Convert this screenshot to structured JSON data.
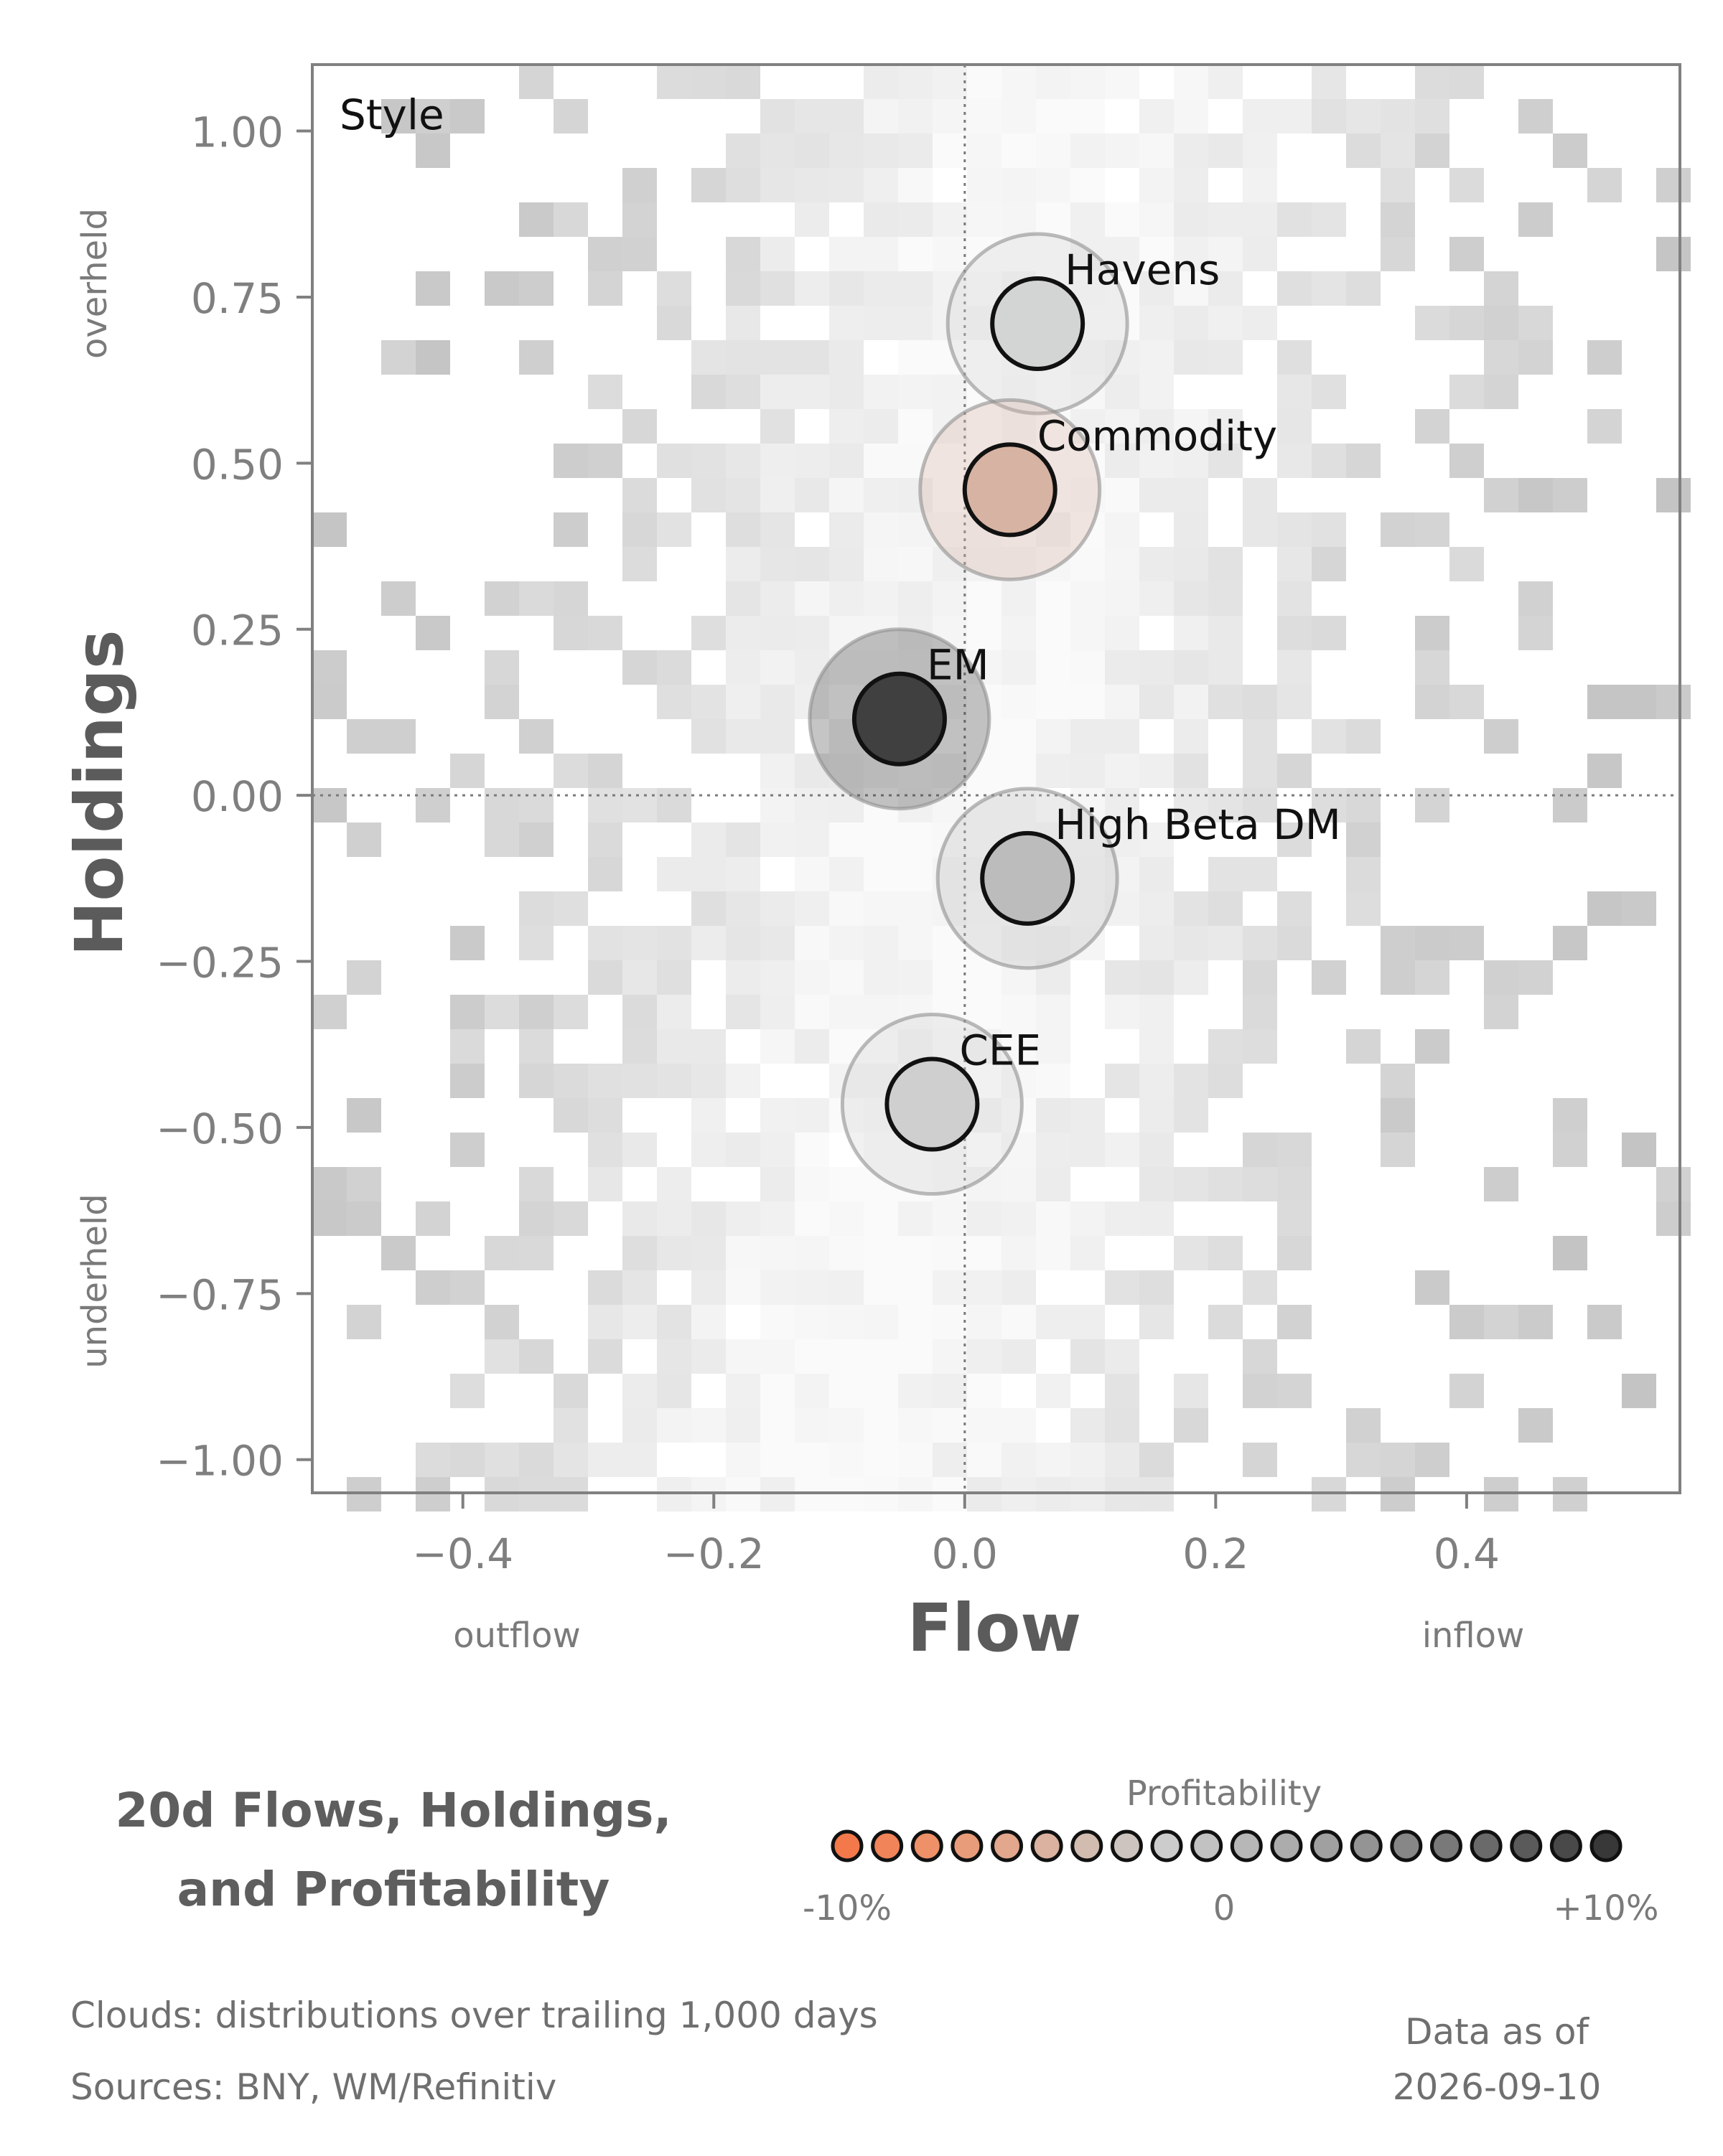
{
  "chart_data": {
    "type": "scatter",
    "title": "20d Flows, Holdings, and Profitability",
    "title_lines": [
      "20d Flows, Holdings,",
      "and Profitability"
    ],
    "panel_label": "Style",
    "xlabel": "Flow",
    "ylabel": "Holdings",
    "xlim": [
      -0.52,
      0.57
    ],
    "ylim": [
      -1.05,
      1.1
    ],
    "x_ticks": [
      -0.4,
      -0.2,
      0.0,
      0.2,
      0.4
    ],
    "x_tick_labels": [
      "−0.4",
      "−0.2",
      "0.0",
      "0.2",
      "0.4"
    ],
    "y_ticks": [
      1.0,
      0.75,
      0.5,
      0.25,
      0.0,
      -0.25,
      -0.5,
      -0.75,
      -1.0
    ],
    "y_tick_labels": [
      "1.00",
      "0.75",
      "0.50",
      "0.25",
      "0.00",
      "−0.25",
      "−0.50",
      "−0.75",
      "−1.00"
    ],
    "x_annotations": {
      "low": "outflow",
      "high": "inflow"
    },
    "y_annotations": {
      "high": "overheld",
      "low": "underheld"
    },
    "reference_lines": {
      "x": 0.0,
      "y": 0.0
    },
    "grid": false,
    "points": [
      {
        "name": "Havens",
        "x": 0.058,
        "y": 0.71,
        "profitability": 0.01,
        "color": "#d3d5d4"
      },
      {
        "name": "Commodity",
        "x": 0.036,
        "y": 0.46,
        "profitability": -0.04,
        "color": "#d7b3a3"
      },
      {
        "name": "EM",
        "x": -0.052,
        "y": 0.115,
        "profitability": 0.1,
        "color": "#404040"
      },
      {
        "name": "High Beta DM",
        "x": 0.05,
        "y": -0.125,
        "profitability": 0.03,
        "color": "#bcbcbc"
      },
      {
        "name": "CEE",
        "x": -0.026,
        "y": -0.465,
        "profitability": 0.015,
        "color": "#cfcfcf"
      }
    ],
    "background": "2D histogram clouds of trailing distributions (grey shades)"
  },
  "legend": {
    "title": "Profitability",
    "min_label": "-10%",
    "mid_label": "0",
    "max_label": "+10%",
    "colors": [
      "#f3794a",
      "#f18458",
      "#ee9068",
      "#e99c79",
      "#e2a78c",
      "#dab29f",
      "#d2bcb0",
      "#cec4bf",
      "#cccccc",
      "#c2c2c2",
      "#b7b7b7",
      "#acacac",
      "#a0a0a0",
      "#949494",
      "#878787",
      "#797979",
      "#6a6a6a",
      "#5a5a5a",
      "#494949",
      "#383838"
    ]
  },
  "footer": {
    "clouds_note": "Clouds:  distributions over trailing 1,000 days",
    "sources": "Sources:  BNY, WM/Refinitiv",
    "as_of_label": "Data as of",
    "as_of_date": "2026-09-10"
  }
}
